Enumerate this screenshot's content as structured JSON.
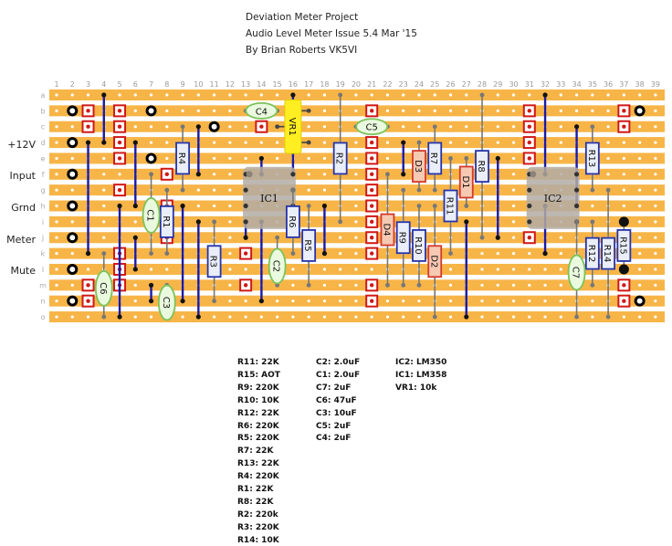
{
  "header": {
    "line1": "Deviation Meter Project",
    "line2": "Audio Level Meter Issue 5.4 Mar '15",
    "line3": "By Brian Roberts VK5VI"
  },
  "board": {
    "columns": [
      "1",
      "2",
      "3",
      "4",
      "5",
      "6",
      "7",
      "8",
      "9",
      "10",
      "11",
      "12",
      "13",
      "14",
      "15",
      "16",
      "17",
      "18",
      "19",
      "20",
      "21",
      "22",
      "23",
      "24",
      "25",
      "26",
      "27",
      "28",
      "29",
      "30",
      "31",
      "32",
      "33",
      "34",
      "35",
      "36",
      "37",
      "38",
      "39"
    ],
    "rows": [
      "a",
      "b",
      "c",
      "d",
      "e",
      "f",
      "g",
      "h",
      "i",
      "j",
      "k",
      "l",
      "m",
      "n",
      "o"
    ],
    "strip_color": "#f7b548",
    "connection_labels": {
      "d": "+12V",
      "f": "Input",
      "h": "Grnd",
      "j": "Meter",
      "l": "Mute"
    }
  },
  "components": {
    "R1": "R1",
    "R2": "R2",
    "R3": "R3",
    "R4": "R4",
    "R5": "R5",
    "R6": "R6",
    "R7": "R7",
    "R7b": "R7",
    "R8": "R8",
    "R9": "R9",
    "R10": "R10",
    "R11": "R11",
    "R12": "R12",
    "R13": "R13",
    "R14": "R14",
    "R15": "R15",
    "D1": "D1",
    "D2": "D2",
    "D3": "D3",
    "D4": "D4",
    "C1": "C1",
    "C2": "C2",
    "C3": "C3",
    "C4": "C4",
    "C5": "C5",
    "C6": "C6",
    "C7": "C7",
    "VR1": "VR1",
    "IC1": "IC1",
    "IC2": "IC2"
  },
  "parts_list": {
    "resistors": [
      "R11: 22K",
      "R15: AOT",
      "R9: 220K",
      "R10: 10K",
      "R12: 22K",
      "R6: 220K",
      "R5: 220K",
      "R7: 22K",
      "R13: 22K",
      "R4: 220K",
      "R1: 22K",
      "R8: 22K",
      "R2: 220k",
      "R3: 220K",
      "R14: 10K"
    ],
    "capacitors": [
      "C2: 2.0uF",
      "C1: 2.0uF",
      "C7: 2uF",
      "C6: 47uF",
      "C3: 10uF",
      "C5: 2uF",
      "C4: 2uF"
    ],
    "other": [
      "IC2: LM350",
      "IC1: LM358",
      "VR1: 10k"
    ]
  }
}
